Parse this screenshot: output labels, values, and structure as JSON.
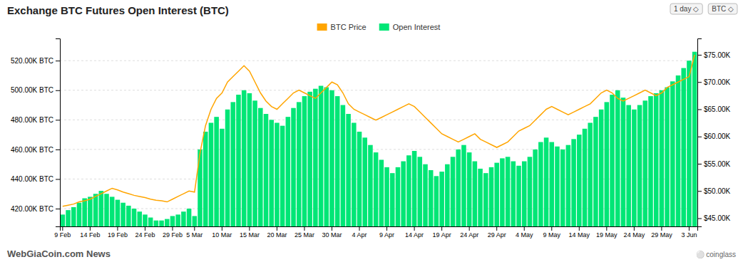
{
  "chart_data": {
    "type": "bar",
    "title": "Exchange BTC Futures Open Interest (BTC)",
    "categories": [
      "9 Feb",
      null,
      null,
      null,
      null,
      "14 Feb",
      null,
      null,
      null,
      null,
      "19 Feb",
      null,
      null,
      null,
      null,
      "24 Feb",
      null,
      null,
      null,
      null,
      "29 Feb",
      null,
      null,
      null,
      "5 Mar",
      null,
      null,
      null,
      null,
      "10 Mar",
      null,
      null,
      null,
      null,
      "15 Mar",
      null,
      null,
      null,
      null,
      "20 Mar",
      null,
      null,
      null,
      null,
      "25 Mar",
      null,
      null,
      null,
      null,
      "30 Mar",
      null,
      null,
      null,
      null,
      "4 Apr",
      null,
      null,
      null,
      null,
      "9 Apr",
      null,
      null,
      null,
      null,
      "14 Apr",
      null,
      null,
      null,
      null,
      "19 Apr",
      null,
      null,
      null,
      null,
      "24 Apr",
      null,
      null,
      null,
      null,
      "29 Apr",
      null,
      null,
      null,
      null,
      "4 May",
      null,
      null,
      null,
      null,
      "9 May",
      null,
      null,
      null,
      null,
      "14 May",
      null,
      null,
      null,
      null,
      "19 May",
      null,
      null,
      null,
      null,
      "24 May",
      null,
      null,
      null,
      null,
      "29 May",
      null,
      null,
      null,
      null,
      "3 Jun",
      null
    ],
    "series": [
      {
        "name": "BTC Price",
        "type": "line",
        "color": "#ffa500",
        "axis": "y2",
        "values": [
          47200,
          47400,
          47600,
          48000,
          48200,
          48500,
          49000,
          49500,
          50000,
          50500,
          50200,
          49800,
          49500,
          49200,
          49000,
          48800,
          48500,
          48300,
          48200,
          48000,
          48500,
          49000,
          49500,
          50000,
          49800,
          57000,
          62000,
          65000,
          67000,
          68000,
          70000,
          71000,
          72000,
          73000,
          72000,
          70000,
          68000,
          66500,
          65500,
          65000,
          66000,
          67000,
          68000,
          68500,
          68000,
          67500,
          67000,
          68000,
          69000,
          70000,
          69500,
          68000,
          66000,
          65000,
          64500,
          64000,
          63500,
          63000,
          63500,
          64000,
          64500,
          65000,
          65500,
          66000,
          65500,
          64500,
          63500,
          62500,
          61500,
          60500,
          60000,
          59500,
          59000,
          59500,
          60000,
          60500,
          59500,
          59000,
          58500,
          58000,
          58500,
          59000,
          60000,
          61000,
          61500,
          62000,
          63000,
          64000,
          65000,
          65500,
          65000,
          64500,
          64000,
          64500,
          65000,
          65500,
          66000,
          67000,
          68000,
          68500,
          68000,
          67000,
          66500,
          67000,
          67500,
          68000,
          68500,
          68000,
          67500,
          68000,
          69000,
          69500,
          70000,
          70500,
          71000,
          75000
        ]
      },
      {
        "name": "Open Interest",
        "type": "bar",
        "color": "#00e676",
        "values": [
          416000,
          419000,
          421000,
          424000,
          427000,
          428000,
          430000,
          432000,
          430000,
          428000,
          426000,
          424000,
          422000,
          420000,
          418000,
          416000,
          414000,
          412000,
          412000,
          413000,
          415000,
          416000,
          418000,
          420000,
          415000,
          460000,
          472000,
          478000,
          482000,
          474000,
          487000,
          492000,
          497000,
          500000,
          498000,
          493000,
          488000,
          484000,
          480000,
          478000,
          476000,
          482000,
          488000,
          492000,
          496000,
          499000,
          501000,
          503000,
          502000,
          500000,
          496000,
          490000,
          484000,
          478000,
          472000,
          468000,
          463000,
          458000,
          453000,
          448000,
          444000,
          448000,
          452000,
          456000,
          459000,
          455000,
          450000,
          446000,
          442000,
          445000,
          450000,
          455000,
          460000,
          463000,
          458000,
          452000,
          447000,
          444000,
          448000,
          451000,
          454000,
          455000,
          452000,
          449000,
          452000,
          455000,
          460000,
          465000,
          468000,
          465000,
          462000,
          460000,
          463000,
          467000,
          470000,
          474000,
          478000,
          482000,
          487000,
          492000,
          497000,
          500000,
          495000,
          490000,
          487000,
          490000,
          493000,
          496000,
          498000,
          500000,
          502000,
          506000,
          510000,
          515000,
          520000,
          526000
        ]
      }
    ],
    "ylim": [
      408000,
      535000
    ],
    "yticks": [
      {
        "value": 420000,
        "label": "420.00K BTC"
      },
      {
        "value": 440000,
        "label": "440.00K BTC"
      },
      {
        "value": 460000,
        "label": "460.00K BTC"
      },
      {
        "value": 480000,
        "label": "480.00K BTC"
      },
      {
        "value": 500000,
        "label": "500.00K BTC"
      },
      {
        "value": 520000,
        "label": "520.00K BTC"
      }
    ],
    "y2lim": [
      43500,
      78000
    ],
    "y2ticks": [
      {
        "value": 45000,
        "label": "$45.00K"
      },
      {
        "value": 50000,
        "label": "$50.00K"
      },
      {
        "value": 55000,
        "label": "$55.00K"
      },
      {
        "value": 60000,
        "label": "$60.00K"
      },
      {
        "value": 65000,
        "label": "$65.00K"
      },
      {
        "value": 70000,
        "label": "$70.00K"
      },
      {
        "value": 75000,
        "label": "$75.00K"
      }
    ],
    "grid": true,
    "legend": "top",
    "annotations": [
      "WebGiaCoin.com News",
      "⚪ coinglass",
      "1 day ◇",
      "BTC ◇"
    ]
  }
}
